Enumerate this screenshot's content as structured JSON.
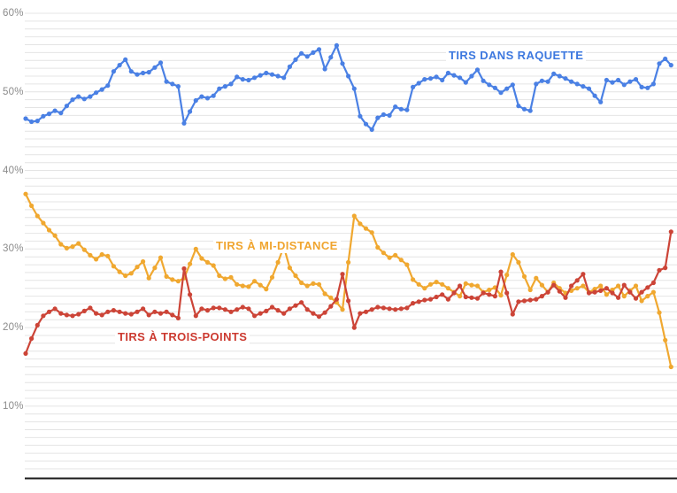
{
  "chart_data": {
    "type": "line",
    "x_axis": {
      "labels_visible": false,
      "point_count": 111
    },
    "y_axis": {
      "unit": "%",
      "tick_values": [
        60,
        50,
        40,
        30,
        20,
        10
      ],
      "tick_labels": [
        "60%",
        "50%",
        "40%",
        "30%",
        "20%",
        "10%"
      ],
      "gridline_step": 1,
      "max_gridline": 60,
      "min_gridline": 2,
      "grid": true
    },
    "style": {
      "gridline_color": "#e4e4e4",
      "axis_line_color": "#1c1c1c",
      "tick_text_color": "#8b8b8b",
      "background": "#ffffff"
    },
    "annotations": [
      {
        "text": "TIRS DANS RAQUETTE",
        "color": "#3d78df"
      },
      {
        "text": "TIRS À MI-DISTANCE",
        "color": "#f0a52f"
      },
      {
        "text": "TIRS À TROIS-POINTS",
        "color": "#cc3a30"
      }
    ],
    "series": [
      {
        "name": "TIRS À MI-DISTANCE",
        "color": "#f0a830",
        "values": [
          37.0,
          35.5,
          34.2,
          33.3,
          32.4,
          31.7,
          30.6,
          30.1,
          30.3,
          30.7,
          29.9,
          29.2,
          28.7,
          29.3,
          29.1,
          27.8,
          27.1,
          26.6,
          26.9,
          27.7,
          28.4,
          26.3,
          27.6,
          28.9,
          26.5,
          26.1,
          25.9,
          26.3,
          28.1,
          30.0,
          28.8,
          28.3,
          27.9,
          26.6,
          26.2,
          26.4,
          25.5,
          25.3,
          25.2,
          25.9,
          25.4,
          24.9,
          26.4,
          28.3,
          30.3,
          27.6,
          26.6,
          25.7,
          25.3,
          25.6,
          25.5,
          24.3,
          23.8,
          23.2,
          22.3,
          28.3,
          34.2,
          33.2,
          32.6,
          32.1,
          30.2,
          29.5,
          28.9,
          29.2,
          28.6,
          28.0,
          26.1,
          25.5,
          25.0,
          25.5,
          25.8,
          25.5,
          25.0,
          24.5,
          24.0,
          25.6,
          25.4,
          25.3,
          24.5,
          24.8,
          25.1,
          24.1,
          26.7,
          29.3,
          28.3,
          26.5,
          24.8,
          26.3,
          25.4,
          24.5,
          25.7,
          25.0,
          24.4,
          24.7,
          25.0,
          25.3,
          24.5,
          24.9,
          25.3,
          24.2,
          24.8,
          25.3,
          24.0,
          24.7,
          25.3,
          23.4,
          24.0,
          24.5,
          21.9,
          18.4,
          15.0
        ]
      },
      {
        "name": "TIRS À TROIS-POINTS",
        "color": "#cc4437",
        "values": [
          16.7,
          18.6,
          20.3,
          21.5,
          22.0,
          22.4,
          21.8,
          21.6,
          21.5,
          21.7,
          22.1,
          22.5,
          21.8,
          21.6,
          22.0,
          22.2,
          22.0,
          21.8,
          21.7,
          22.0,
          22.4,
          21.6,
          22.0,
          21.8,
          22.0,
          21.6,
          21.2,
          27.5,
          24.2,
          21.5,
          22.4,
          22.2,
          22.5,
          22.5,
          22.3,
          22.0,
          22.3,
          22.6,
          22.4,
          21.5,
          21.8,
          22.1,
          22.6,
          22.2,
          21.8,
          22.4,
          22.8,
          23.2,
          22.3,
          21.8,
          21.4,
          21.9,
          22.7,
          23.6,
          26.8,
          23.4,
          20.0,
          21.8,
          22.0,
          22.3,
          22.6,
          22.5,
          22.4,
          22.3,
          22.4,
          22.5,
          23.1,
          23.3,
          23.5,
          23.6,
          23.9,
          24.2,
          23.6,
          24.4,
          25.3,
          23.9,
          23.8,
          23.7,
          24.4,
          24.2,
          24.0,
          27.1,
          24.4,
          21.7,
          23.3,
          23.4,
          23.5,
          23.6,
          24.0,
          24.5,
          25.4,
          24.6,
          23.8,
          25.3,
          26.0,
          26.8,
          24.4,
          24.5,
          24.7,
          25.0,
          24.4,
          23.8,
          25.4,
          24.5,
          23.7,
          24.5,
          25.1,
          25.7,
          27.3,
          27.6,
          32.2
        ]
      },
      {
        "name": "TIRS DANS RAQUETTE",
        "color": "#4a80e4",
        "values": [
          46.6,
          46.2,
          46.3,
          46.9,
          47.2,
          47.6,
          47.3,
          48.2,
          49.0,
          49.4,
          49.1,
          49.4,
          49.9,
          50.3,
          50.8,
          52.6,
          53.4,
          54.1,
          52.6,
          52.2,
          52.4,
          52.5,
          53.1,
          53.7,
          51.3,
          51.0,
          50.7,
          46.0,
          47.5,
          48.9,
          49.4,
          49.2,
          49.5,
          50.4,
          50.7,
          51.0,
          51.9,
          51.6,
          51.5,
          51.8,
          52.1,
          52.4,
          52.2,
          52.0,
          51.8,
          53.2,
          54.1,
          54.9,
          54.5,
          55.0,
          55.4,
          52.9,
          54.4,
          55.9,
          53.6,
          52.0,
          50.4,
          46.9,
          45.9,
          45.2,
          46.7,
          47.1,
          47.0,
          48.1,
          47.8,
          47.7,
          50.6,
          51.1,
          51.6,
          51.7,
          51.9,
          51.5,
          52.4,
          52.1,
          51.8,
          51.2,
          52.0,
          52.8,
          51.4,
          50.9,
          50.5,
          49.9,
          50.4,
          50.9,
          48.2,
          47.8,
          47.6,
          51.0,
          51.4,
          51.3,
          52.3,
          52.0,
          51.7,
          51.3,
          51.0,
          50.7,
          50.4,
          49.5,
          48.7,
          51.5,
          51.2,
          51.5,
          50.9,
          51.3,
          51.6,
          50.6,
          50.5,
          51.0,
          53.6,
          54.2,
          53.4
        ]
      }
    ]
  }
}
